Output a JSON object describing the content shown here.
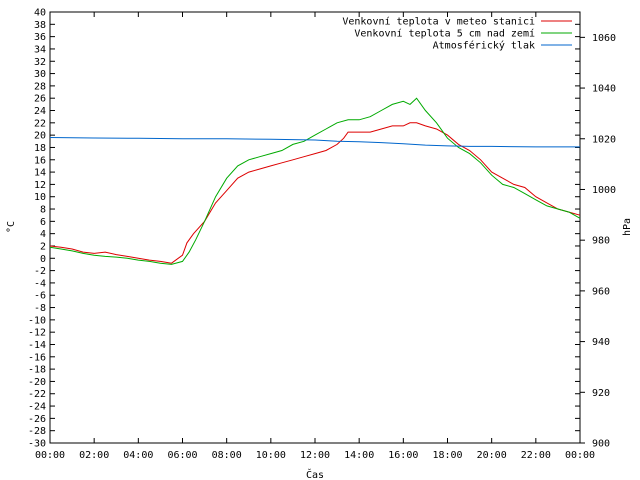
{
  "chart_data": {
    "type": "line",
    "title": "",
    "xlabel": "Čas",
    "ylabel": "°C",
    "y2label": "hPa",
    "xlim": [
      0,
      24
    ],
    "x_tick_labels": [
      "00:00",
      "02:00",
      "04:00",
      "06:00",
      "08:00",
      "10:00",
      "12:00",
      "14:00",
      "16:00",
      "18:00",
      "20:00",
      "22:00",
      "00:00"
    ],
    "x_ticks": [
      0,
      2,
      4,
      6,
      8,
      10,
      12,
      14,
      16,
      18,
      20,
      22,
      24
    ],
    "ylim": [
      -30,
      40
    ],
    "y_ticks": [
      -30,
      -28,
      -26,
      -24,
      -22,
      -20,
      -18,
      -16,
      -14,
      -12,
      -10,
      -8,
      -6,
      -4,
      -2,
      0,
      2,
      4,
      6,
      8,
      10,
      12,
      14,
      16,
      18,
      20,
      22,
      24,
      26,
      28,
      30,
      32,
      34,
      36,
      38,
      40
    ],
    "y2lim": [
      900,
      1070
    ],
    "y2_ticks": [
      900,
      920,
      940,
      960,
      980,
      1000,
      1020,
      1040,
      1060
    ],
    "grid": false,
    "legend_position": "top-right",
    "series": [
      {
        "name": "Venkovní teplota v meteo stanici",
        "color": "#dd0000",
        "axis": "left",
        "x": [
          0,
          0.5,
          1,
          1.5,
          2,
          2.5,
          3,
          3.5,
          4,
          4.5,
          5,
          5.5,
          6,
          6.2,
          6.5,
          7,
          7.5,
          8,
          8.5,
          9,
          9.5,
          10,
          10.5,
          11,
          11.5,
          12,
          12.5,
          13,
          13.3,
          13.5,
          14,
          14.5,
          15,
          15.5,
          16,
          16.3,
          16.6,
          17,
          17.5,
          18,
          18.5,
          19,
          19.5,
          20,
          20.5,
          21,
          21.5,
          22,
          22.5,
          23,
          23.5,
          24
        ],
        "y": [
          2,
          1.8,
          1.5,
          1,
          0.8,
          1,
          0.6,
          0.3,
          0,
          -0.3,
          -0.5,
          -0.8,
          0.5,
          2.5,
          4,
          6,
          9,
          11,
          13,
          14,
          14.5,
          15,
          15.5,
          16,
          16.5,
          17,
          17.5,
          18.5,
          19.5,
          20.5,
          20.5,
          20.5,
          21,
          21.5,
          21.5,
          22,
          22,
          21.5,
          21,
          20,
          18.5,
          17.5,
          16,
          14,
          13,
          12,
          11.5,
          10,
          9,
          8,
          7.5,
          7
        ]
      },
      {
        "name": "Venkovní teplota 5 cm nad zemí",
        "color": "#00aa00",
        "axis": "left",
        "x": [
          0,
          0.5,
          1,
          1.5,
          2,
          2.5,
          3,
          3.5,
          4,
          4.5,
          5,
          5.5,
          6,
          6.3,
          6.6,
          7,
          7.5,
          8,
          8.5,
          9,
          9.5,
          10,
          10.5,
          11,
          11.5,
          12,
          12.5,
          13,
          13.5,
          14,
          14.5,
          15,
          15.5,
          16,
          16.3,
          16.6,
          17,
          17.5,
          18,
          18.5,
          19,
          19.5,
          20,
          20.5,
          21,
          21.5,
          22,
          22.5,
          23,
          23.5,
          24
        ],
        "y": [
          1.8,
          1.5,
          1.2,
          0.8,
          0.5,
          0.3,
          0.2,
          0,
          -0.3,
          -0.5,
          -0.8,
          -1,
          -0.5,
          1,
          3,
          6,
          10,
          13,
          15,
          16,
          16.5,
          17,
          17.5,
          18.5,
          19,
          20,
          21,
          22,
          22.5,
          22.5,
          23,
          24,
          25,
          25.5,
          25,
          26,
          24,
          22,
          19.5,
          18,
          17,
          15.5,
          13.5,
          12,
          11.5,
          10.5,
          9.5,
          8.5,
          8,
          7.5,
          6.5
        ]
      },
      {
        "name": "Atmosférický tlak",
        "color": "#0066cc",
        "axis": "right",
        "x": [
          0,
          2,
          4,
          6,
          8,
          10,
          12,
          13,
          14,
          15,
          16,
          17,
          18,
          19,
          20,
          22,
          24
        ],
        "y": [
          1020.5,
          1020.3,
          1020.2,
          1020,
          1020,
          1019.8,
          1019.5,
          1019,
          1018.8,
          1018.5,
          1018,
          1017.5,
          1017.2,
          1017,
          1017,
          1016.8,
          1016.8
        ]
      }
    ]
  }
}
